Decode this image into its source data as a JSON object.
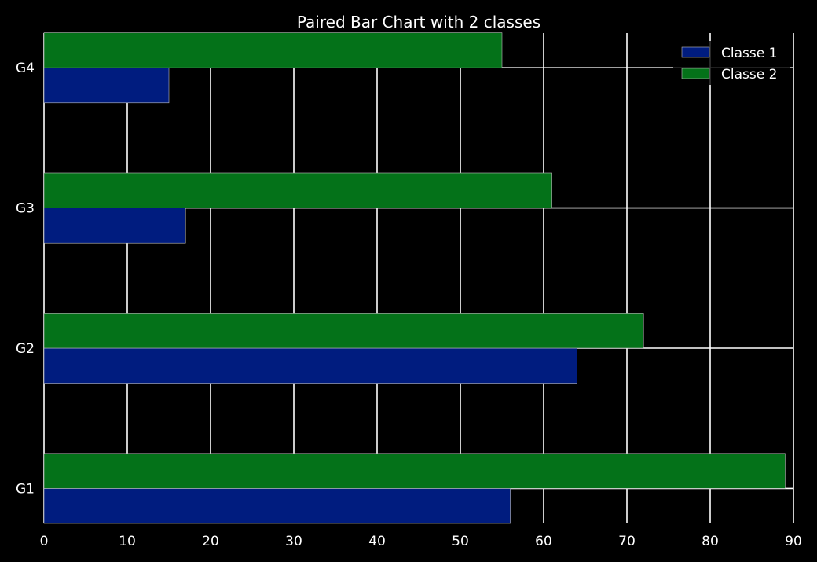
{
  "chart_data": {
    "type": "bar",
    "orientation": "horizontal",
    "title": "Paired Bar Chart with 2 classes",
    "xlabel": "",
    "ylabel": "",
    "categories": [
      "G1",
      "G2",
      "G3",
      "G4"
    ],
    "series": [
      {
        "name": "Classe 1",
        "values": [
          56,
          64,
          17,
          15
        ],
        "color": "#001c7f"
      },
      {
        "name": "Classe 2",
        "values": [
          89,
          72,
          61,
          55
        ],
        "color": "#047219"
      }
    ],
    "xlim": [
      0,
      90
    ],
    "xticks": [
      0,
      10,
      20,
      30,
      40,
      50,
      60,
      70,
      80,
      90
    ],
    "grid": true,
    "legend_position": "top-right",
    "background": "#000000",
    "text_color": "#ffffff",
    "grid_color": "#ffffff"
  }
}
